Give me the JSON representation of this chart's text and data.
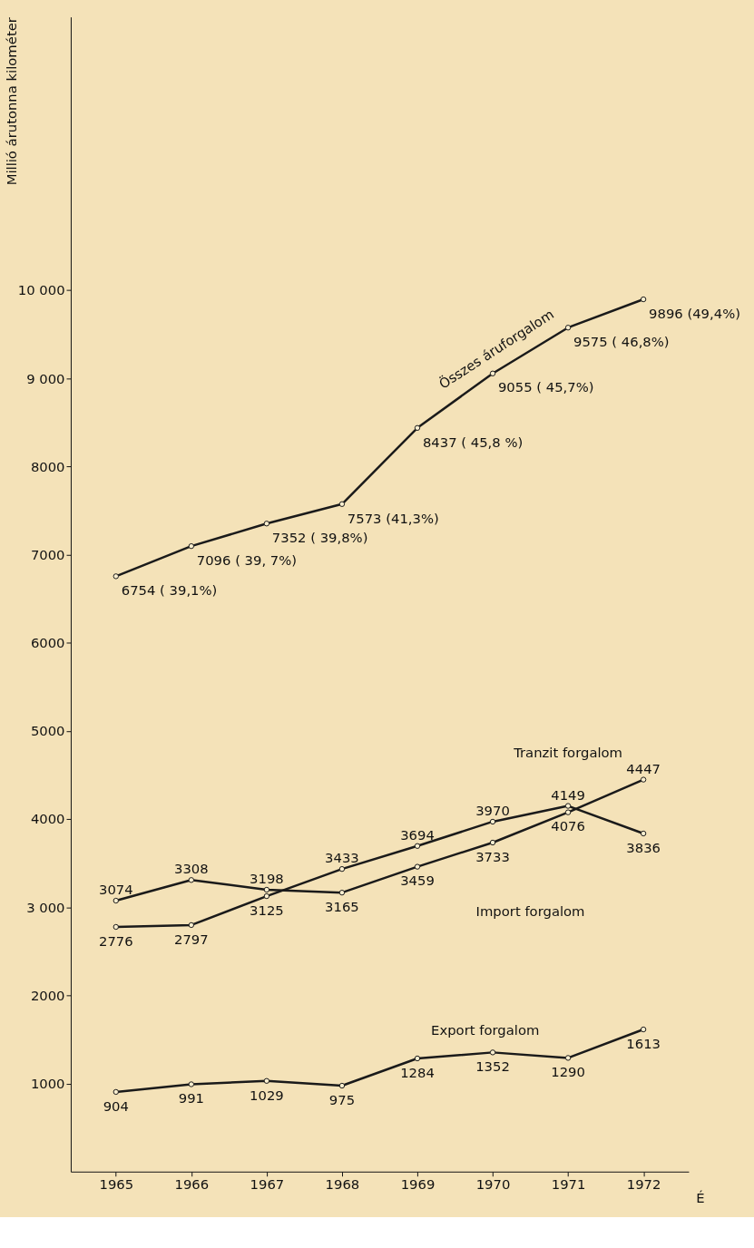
{
  "chart_data": {
    "type": "line",
    "xlabel": "É",
    "ylabel": "Millió árutonna kilométer",
    "categories": [
      "1965",
      "1966",
      "1967",
      "1968",
      "1969",
      "1970",
      "1971",
      "1972"
    ],
    "series": [
      {
        "color": "#1a1a1a",
        "values": [
          6754,
          7096,
          7352,
          7573,
          8437,
          9055,
          9575,
          9896
        ],
        "value_labels": [
          "6754 ( 39,1%)",
          "7096 ( 39, 7%)",
          "7352 ( 39,8%)",
          "7573  (41,3%)",
          "8437 ( 45,8 %)",
          "9055 ( 45,7%)",
          "9575 ( 46,8%)",
          "9896  (49,4%)"
        ]
      },
      {
        "color": "#1a1a1a",
        "values": [
          3074,
          3308,
          3198,
          3165,
          3459,
          3733,
          4076,
          4447
        ],
        "value_labels": [
          "3074",
          "3308",
          "3198",
          "3165",
          "3459",
          "3733",
          "4076",
          "4447"
        ]
      },
      {
        "color": "#1a1a1a",
        "values": [
          2776,
          2797,
          3125,
          3433,
          3694,
          3970,
          4149,
          3836
        ],
        "value_labels": [
          "2776",
          "2797",
          "3125",
          "3433",
          "3694",
          "3970",
          "4149",
          "3836"
        ]
      },
      {
        "color": "#1a1a1a",
        "values": [
          904,
          991,
          1029,
          975,
          1284,
          1352,
          1290,
          1613
        ],
        "value_labels": [
          "904",
          "991",
          "1029",
          "975",
          "1284",
          "1352",
          "1290",
          "1613"
        ]
      }
    ],
    "annotations": [
      "Összes áruforgalom",
      "Tranzit forgalom",
      "Import forgalom",
      "Export forgalom"
    ],
    "ylim": [
      0,
      13100
    ],
    "yticks": [
      {
        "value": 1000,
        "label": "1000"
      },
      {
        "value": 2000,
        "label": "2000"
      },
      {
        "value": 3000,
        "label": "3 000"
      },
      {
        "value": 4000,
        "label": "4000"
      },
      {
        "value": 5000,
        "label": "5000"
      },
      {
        "value": 6000,
        "label": "6000"
      },
      {
        "value": 7000,
        "label": "7000"
      },
      {
        "value": 8000,
        "label": "8000"
      },
      {
        "value": 9000,
        "label": "9 000"
      },
      {
        "value": 10000,
        "label": "10 000"
      }
    ],
    "marker": "circle",
    "line_style": "solid"
  }
}
